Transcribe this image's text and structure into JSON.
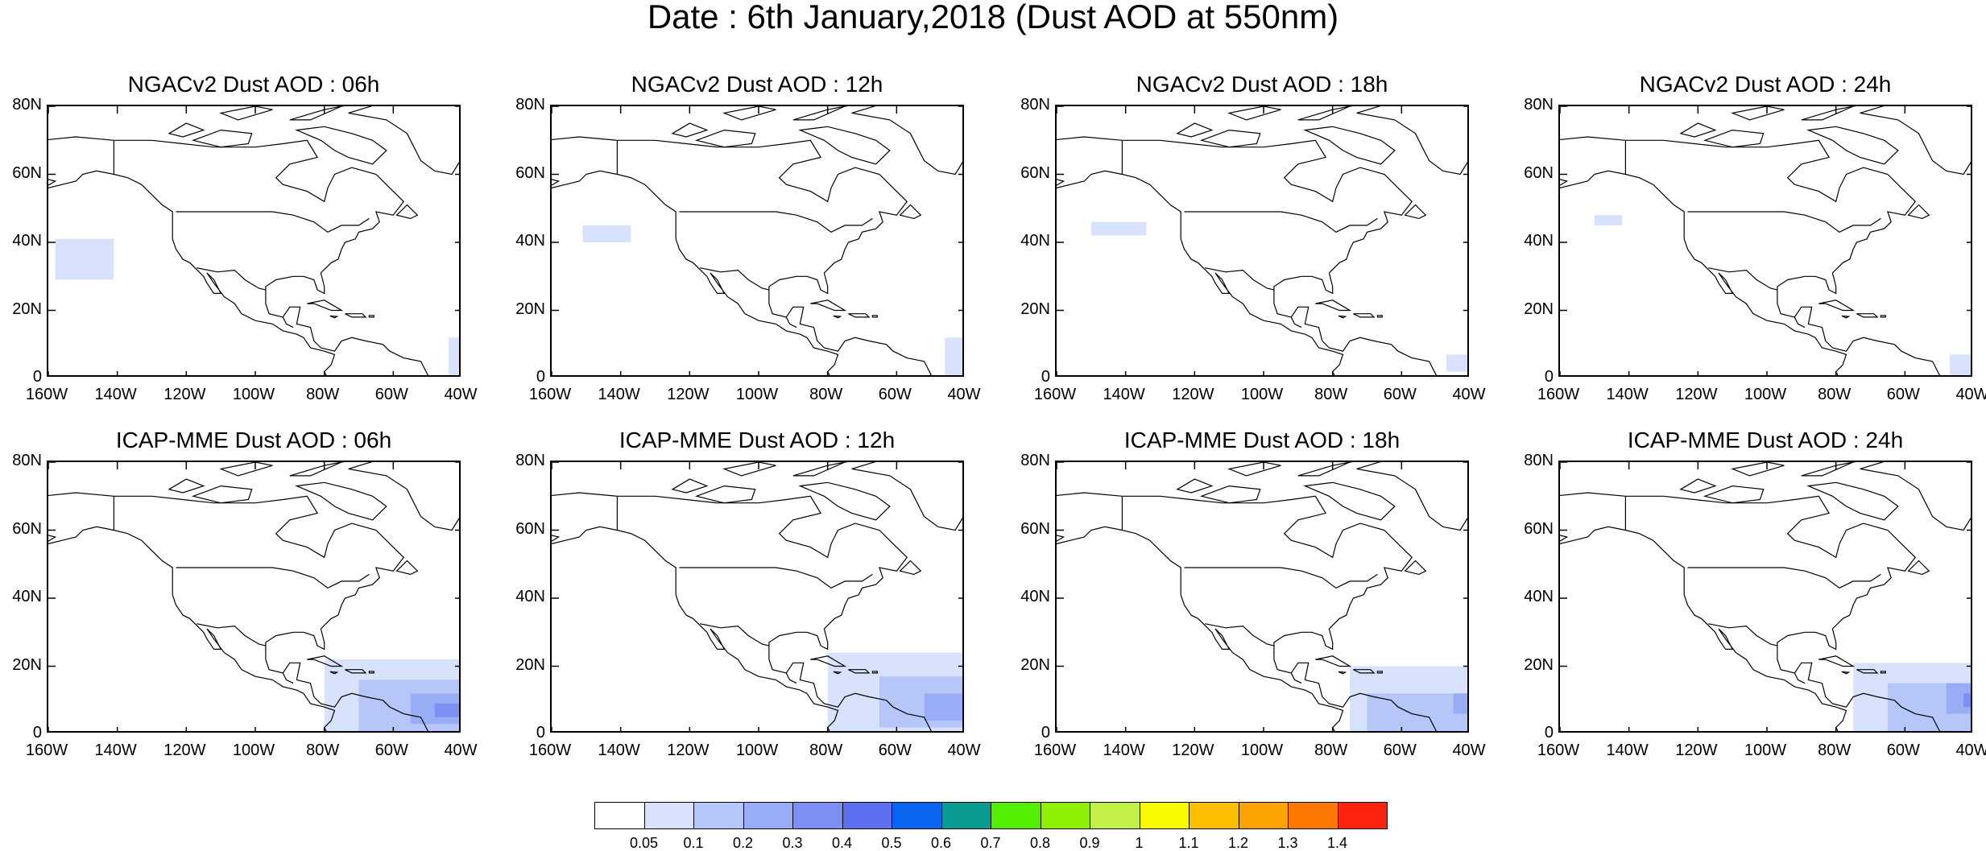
{
  "figure": {
    "title": "Date : 6th January,2018 (Dust AOD at 550nm)"
  },
  "axes": {
    "x_ticks": [
      "160W",
      "140W",
      "120W",
      "100W",
      "80W",
      "60W",
      "40W"
    ],
    "y_ticks": [
      "80N",
      "60N",
      "40N",
      "20N",
      "0"
    ],
    "lon_range": [
      -160,
      -40
    ],
    "lat_range": [
      0,
      80
    ]
  },
  "panels": [
    {
      "title": "NGACv2 Dust AOD : 06h",
      "model": "NGACv2",
      "lead": "06h",
      "dust_patches": [
        {
          "lon": [
            -158,
            -141
          ],
          "lat": [
            29,
            41
          ],
          "level": 1
        },
        {
          "lon": [
            -44,
            -40
          ],
          "lat": [
            1,
            12
          ],
          "level": 1
        }
      ]
    },
    {
      "title": "NGACv2 Dust AOD : 12h",
      "model": "NGACv2",
      "lead": "12h",
      "dust_patches": [
        {
          "lon": [
            -151,
            -137
          ],
          "lat": [
            40,
            45
          ],
          "level": 1
        },
        {
          "lon": [
            -46,
            -40
          ],
          "lat": [
            1,
            12
          ],
          "level": 1
        }
      ]
    },
    {
      "title": "NGACv2 Dust AOD : 18h",
      "model": "NGACv2",
      "lead": "18h",
      "dust_patches": [
        {
          "lon": [
            -150,
            -134
          ],
          "lat": [
            42,
            46
          ],
          "level": 1
        },
        {
          "lon": [
            -47,
            -40
          ],
          "lat": [
            2,
            7
          ],
          "level": 1
        }
      ]
    },
    {
      "title": "NGACv2 Dust AOD : 24h",
      "model": "NGACv2",
      "lead": "24h",
      "dust_patches": [
        {
          "lon": [
            -150,
            -142
          ],
          "lat": [
            45,
            48
          ],
          "level": 1
        },
        {
          "lon": [
            -47,
            -40
          ],
          "lat": [
            1,
            7
          ],
          "level": 1
        }
      ]
    },
    {
      "title": "ICAP-MME Dust AOD : 06h",
      "model": "ICAP-MME",
      "lead": "06h",
      "dust_patches": [
        {
          "lon": [
            -80,
            -40
          ],
          "lat": [
            0,
            22
          ],
          "level": 1
        },
        {
          "lon": [
            -70,
            -40
          ],
          "lat": [
            0,
            16
          ],
          "level": 2
        },
        {
          "lon": [
            -55,
            -40
          ],
          "lat": [
            3,
            12
          ],
          "level": 3
        },
        {
          "lon": [
            -48,
            -41
          ],
          "lat": [
            5,
            9
          ],
          "level": 4
        }
      ]
    },
    {
      "title": "ICAP-MME Dust AOD : 12h",
      "model": "ICAP-MME",
      "lead": "12h",
      "dust_patches": [
        {
          "lon": [
            -80,
            -40
          ],
          "lat": [
            0,
            24
          ],
          "level": 1
        },
        {
          "lon": [
            -65,
            -40
          ],
          "lat": [
            2,
            17
          ],
          "level": 2
        },
        {
          "lon": [
            -52,
            -40
          ],
          "lat": [
            4,
            12
          ],
          "level": 3
        }
      ]
    },
    {
      "title": "ICAP-MME Dust AOD : 18h",
      "model": "ICAP-MME",
      "lead": "18h",
      "dust_patches": [
        {
          "lon": [
            -75,
            -40
          ],
          "lat": [
            0,
            20
          ],
          "level": 1
        },
        {
          "lon": [
            -70,
            -40
          ],
          "lat": [
            0,
            12
          ],
          "level": 2
        },
        {
          "lon": [
            -45,
            -40
          ],
          "lat": [
            6,
            12
          ],
          "level": 3
        }
      ]
    },
    {
      "title": "ICAP-MME Dust AOD : 24h",
      "model": "ICAP-MME",
      "lead": "24h",
      "dust_patches": [
        {
          "lon": [
            -75,
            -40
          ],
          "lat": [
            0,
            21
          ],
          "level": 1
        },
        {
          "lon": [
            -65,
            -40
          ],
          "lat": [
            0,
            15
          ],
          "level": 2
        },
        {
          "lon": [
            -48,
            -40
          ],
          "lat": [
            6,
            15
          ],
          "level": 3
        },
        {
          "lon": [
            -43,
            -40
          ],
          "lat": [
            8,
            12
          ],
          "level": 4
        }
      ]
    }
  ],
  "colorbar": {
    "labels": [
      "0.05",
      "0.1",
      "0.2",
      "0.3",
      "0.4",
      "0.5",
      "0.6",
      "0.7",
      "0.8",
      "0.9",
      "1",
      "1.1",
      "1.2",
      "1.3",
      "1.4"
    ],
    "colors": [
      "#ffffff",
      "#d8e2fc",
      "#b6c6f9",
      "#98adf6",
      "#7d8ff3",
      "#5e70f2",
      "#0a65f0",
      "#0a9c90",
      "#52f000",
      "#8ef000",
      "#c2f046",
      "#fbfb00",
      "#fcc000",
      "#fca300",
      "#fc7800",
      "#fc2410"
    ]
  }
}
